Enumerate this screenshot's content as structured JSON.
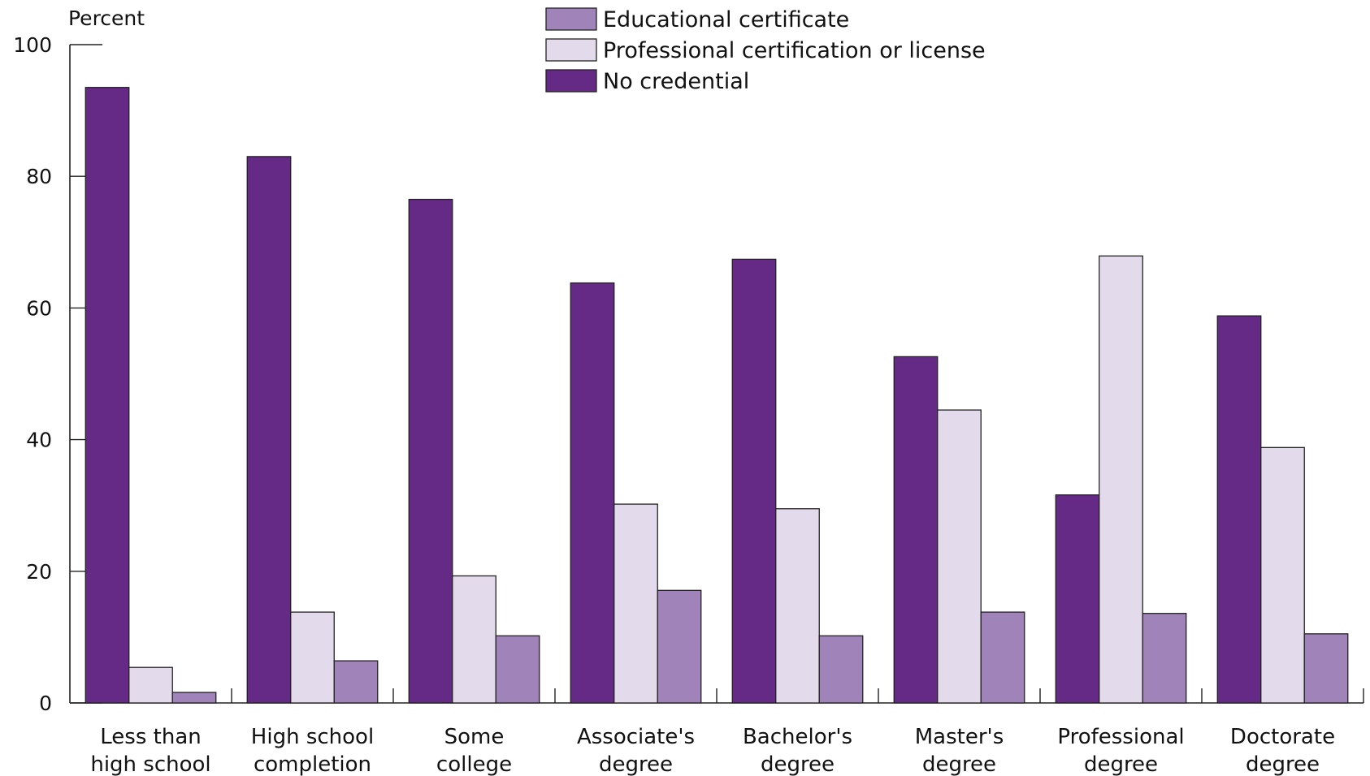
{
  "chart_data": {
    "type": "bar",
    "ylabel": "Percent",
    "ylim": [
      0,
      100
    ],
    "yticks": [
      0,
      20,
      40,
      60,
      80,
      100
    ],
    "legend_position": "top-center",
    "categories": [
      [
        "Less than",
        "high school"
      ],
      [
        "High school",
        "completion"
      ],
      [
        "Some",
        "college"
      ],
      [
        "Associate's",
        "degree"
      ],
      [
        "Bachelor's",
        "degree"
      ],
      [
        "Master's",
        "degree"
      ],
      [
        "Professional",
        "degree"
      ],
      [
        "Doctorate",
        "degree"
      ]
    ],
    "series": [
      {
        "name": "No credential",
        "color": "#652a85",
        "values": [
          93.5,
          83,
          76.5,
          63.8,
          67.4,
          52.6,
          31.6,
          58.8
        ]
      },
      {
        "name": "Professional certification or license",
        "color": "#e3dbec",
        "values": [
          5.4,
          13.8,
          19.3,
          30.2,
          29.5,
          44.5,
          67.9,
          38.8
        ]
      },
      {
        "name": "Educational certificate",
        "color": "#a084b9",
        "values": [
          1.6,
          6.4,
          10.2,
          17.1,
          10.2,
          13.8,
          13.6,
          10.5
        ]
      }
    ],
    "legend_order": [
      2,
      1,
      0
    ]
  }
}
